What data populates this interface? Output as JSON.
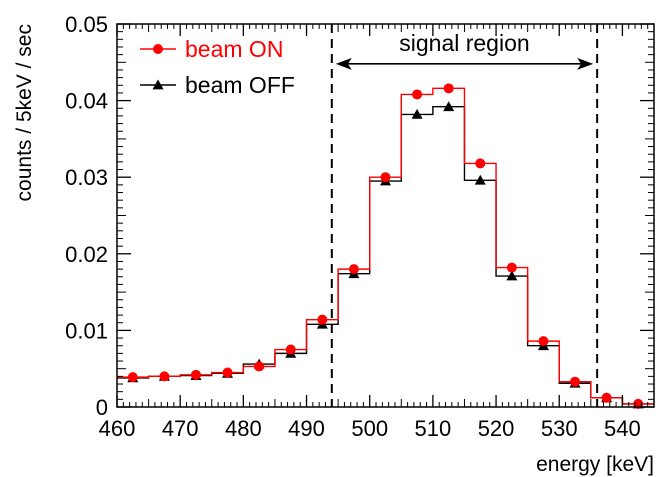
{
  "chart_data": {
    "type": "step",
    "xlabel": "energy [keV]",
    "ylabel": "counts / 5keV / sec",
    "xlim": [
      460,
      545
    ],
    "ylim": [
      0,
      0.05
    ],
    "xticks": [
      "460",
      "470",
      "480",
      "490",
      "500",
      "510",
      "520",
      "530",
      "540"
    ],
    "yticks": [
      "0",
      "0.01",
      "0.02",
      "0.03",
      "0.04",
      "0.05"
    ],
    "bin_edges": [
      460,
      465,
      470,
      475,
      480,
      485,
      490,
      495,
      500,
      505,
      510,
      515,
      520,
      525,
      530,
      535,
      540,
      545
    ],
    "legend_position": "top-left",
    "series": [
      {
        "name": "beam ON",
        "color": "#ff0000",
        "marker": "circle",
        "values": [
          0.0039,
          0.004,
          0.0042,
          0.0045,
          0.0053,
          0.0075,
          0.0114,
          0.018,
          0.03,
          0.0408,
          0.0416,
          0.0318,
          0.0182,
          0.0086,
          0.0033,
          0.0012,
          0.0004
        ],
        "errors": [
          0.0002,
          0.0002,
          0.0002,
          0.0002,
          0.0002,
          0.0003,
          0.0003,
          0.0004,
          0.0005,
          0.0006,
          0.0006,
          0.0005,
          0.0004,
          0.0003,
          0.0002,
          0.0002,
          0.0001
        ]
      },
      {
        "name": "beam OFF",
        "color": "#000000",
        "marker": "triangle",
        "values": [
          0.0038,
          0.004,
          0.0041,
          0.0044,
          0.0056,
          0.007,
          0.0108,
          0.0174,
          0.0295,
          0.0382,
          0.0392,
          0.0296,
          0.0171,
          0.008,
          0.0031,
          0.0012,
          0.0004
        ],
        "errors": [
          0.0002,
          0.0002,
          0.0002,
          0.0002,
          0.0002,
          0.0003,
          0.0003,
          0.0004,
          0.0005,
          0.0005,
          0.0005,
          0.0005,
          0.0004,
          0.0003,
          0.0002,
          0.0002,
          0.0001
        ]
      }
    ],
    "annotation": {
      "text": "signal region",
      "x_from": 494,
      "x_to": 536,
      "y": 0.0448,
      "line_style": "dashed"
    }
  }
}
